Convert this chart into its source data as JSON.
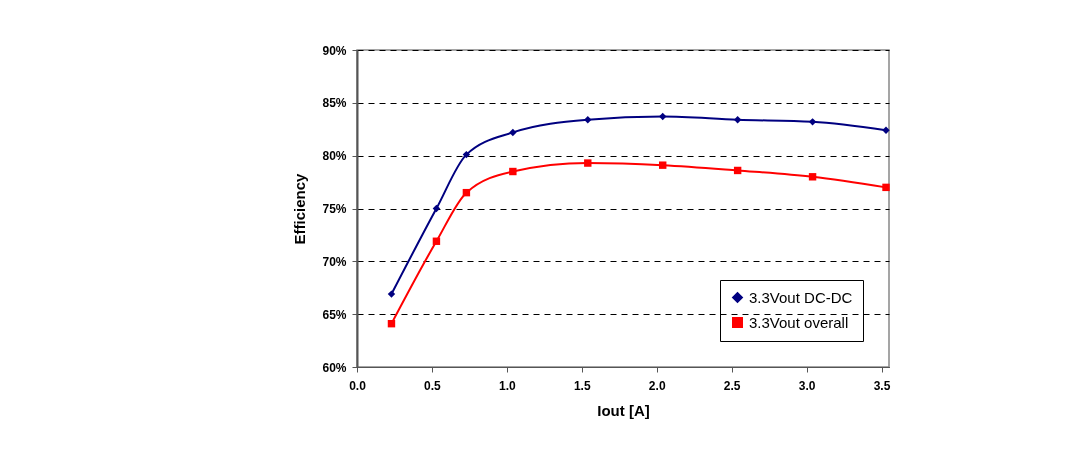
{
  "chart_data": {
    "type": "line",
    "xlabel": "Iout [A]",
    "ylabel": "Efficiency",
    "xlim": [
      0,
      3.55
    ],
    "xticks": [
      {
        "value": 0,
        "label": "0.0"
      },
      {
        "value": 0.5,
        "label": "0.5"
      },
      {
        "value": 1,
        "label": "1.0"
      },
      {
        "value": 1.5,
        "label": "1.5"
      },
      {
        "value": 2,
        "label": "2.0"
      },
      {
        "value": 2.5,
        "label": "2.5"
      },
      {
        "value": 3,
        "label": "3.0"
      },
      {
        "value": 3.5,
        "label": "3.5"
      }
    ],
    "ylim": [
      60,
      90
    ],
    "yticks": [
      {
        "value": 60,
        "label": "60%"
      },
      {
        "value": 65,
        "label": "65%"
      },
      {
        "value": 70,
        "label": "70%"
      },
      {
        "value": 75,
        "label": "75%"
      },
      {
        "value": 80,
        "label": "80%"
      },
      {
        "value": 85,
        "label": "85%"
      },
      {
        "value": 90,
        "label": "90%"
      }
    ],
    "grid": "y",
    "legend": "bottom right",
    "line_style": "solid",
    "x": [
      0.23,
      0.53,
      0.73,
      1.04,
      1.54,
      2.04,
      2.54,
      3.04,
      3.53
    ],
    "series": [
      {
        "name": "3.3Vout DC-DC",
        "color": "#000080",
        "marker": "diamond",
        "values": [
          66.9,
          75.0,
          80.1,
          82.2,
          83.4,
          83.7,
          83.4,
          83.2,
          82.4
        ]
      },
      {
        "name": "3.3Vout overall",
        "color": "#ff0000",
        "marker": "square",
        "values": [
          64.1,
          71.9,
          76.5,
          78.5,
          79.3,
          79.1,
          78.6,
          78.0,
          77.0
        ]
      }
    ]
  }
}
